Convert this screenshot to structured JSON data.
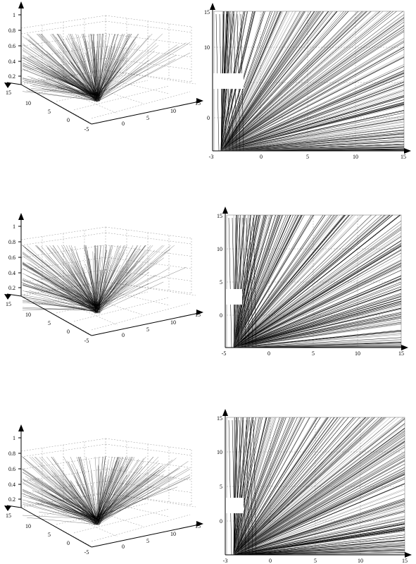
{
  "chart_data": [
    {
      "type": "line",
      "title": "",
      "xlabel": "",
      "ylabel": "",
      "grid": true,
      "z_ticks": [
        "1",
        "0.8",
        "0.6",
        "0.4",
        "0.2"
      ],
      "x_ticks": [
        "15",
        "10",
        "5",
        "0",
        "-5"
      ],
      "y_ticks": [
        "0",
        "5",
        "10",
        "15"
      ],
      "xlim": [
        -5,
        15
      ],
      "ylim": [
        -5,
        15
      ],
      "zlim": [
        0,
        1
      ]
    },
    {
      "type": "line",
      "title": "",
      "xlabel": "",
      "ylabel": "",
      "grid": true,
      "x_ticks": [
        "-3",
        "0",
        "5",
        "10",
        "15"
      ],
      "y_ticks": [
        "15",
        "10",
        "0"
      ],
      "xlim": [
        -3,
        15
      ],
      "ylim": [
        -3,
        15
      ]
    },
    {
      "type": "line",
      "title": "",
      "xlabel": "",
      "ylabel": "",
      "grid": true,
      "z_ticks": [
        "1",
        "0.8",
        "0.6",
        "0.4",
        "0.2"
      ],
      "x_ticks": [
        "15",
        "10",
        "5",
        "0",
        "-5"
      ],
      "y_ticks": [
        "0",
        "5",
        "10",
        "15"
      ],
      "xlim": [
        -5,
        15
      ],
      "ylim": [
        -5,
        15
      ],
      "zlim": [
        0,
        1
      ]
    },
    {
      "type": "line",
      "title": "",
      "xlabel": "",
      "ylabel": "",
      "grid": true,
      "x_ticks": [
        "-5",
        "0",
        "5",
        "10",
        "15"
      ],
      "y_ticks": [
        "15",
        "10",
        "5",
        "0"
      ],
      "xlim": [
        -5,
        15
      ],
      "ylim": [
        -5,
        15
      ]
    },
    {
      "type": "line",
      "title": "",
      "xlabel": "",
      "ylabel": "",
      "grid": true,
      "z_ticks": [
        "1",
        "0.8",
        "0.6",
        "0.4",
        "0.2"
      ],
      "x_ticks": [
        "15",
        "10",
        "5",
        "0",
        "-5"
      ],
      "y_ticks": [
        "0",
        "5",
        "10",
        "15"
      ],
      "xlim": [
        -5,
        15
      ],
      "ylim": [
        -5,
        15
      ],
      "zlim": [
        0,
        1
      ]
    },
    {
      "type": "line",
      "title": "",
      "xlabel": "",
      "ylabel": "",
      "grid": true,
      "x_ticks": [
        "-3",
        "0",
        "5",
        "10",
        "15"
      ],
      "y_ticks": [
        "15",
        "10",
        "5",
        "0"
      ],
      "xlim": [
        -3,
        15
      ],
      "ylim": [
        -3,
        15
      ]
    }
  ]
}
